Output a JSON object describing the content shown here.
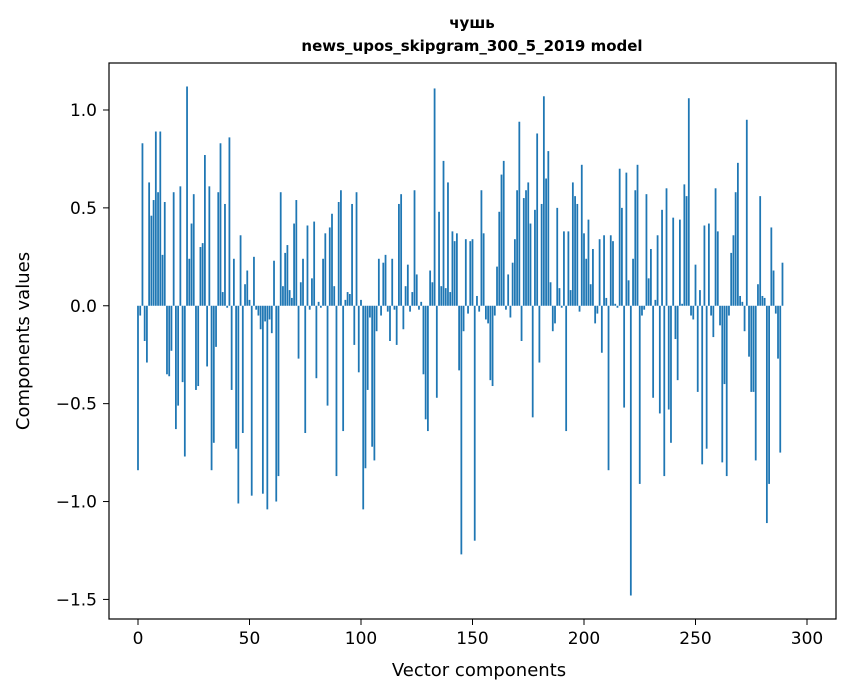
{
  "chart_data": {
    "type": "bar",
    "title": "чушь",
    "subtitle": "news_upos_skipgram_300_5_2019 model",
    "xlabel": "Vector components",
    "ylabel": "Components values",
    "xlim": [
      -13,
      313
    ],
    "ylim": [
      -1.6,
      1.24
    ],
    "xticks": [
      0,
      50,
      100,
      150,
      200,
      250,
      300
    ],
    "yticks": [
      1.0,
      0.5,
      0.0,
      -0.5,
      -1.0,
      -1.5
    ],
    "ytick_labels": [
      "1.0",
      "0.5",
      "0.0",
      "−0.5",
      "−1.0",
      "−1.5"
    ],
    "bar_color": "#1f77b4",
    "values": [
      -0.84,
      -0.05,
      0.83,
      -0.18,
      -0.29,
      0.63,
      0.46,
      0.54,
      0.89,
      0.58,
      0.89,
      0.26,
      0.53,
      -0.35,
      -0.36,
      -0.23,
      0.58,
      -0.63,
      -0.51,
      0.61,
      -0.39,
      -0.77,
      1.12,
      0.24,
      0.42,
      0.57,
      -0.43,
      -0.41,
      0.3,
      0.32,
      0.77,
      -0.31,
      0.61,
      -0.84,
      -0.7,
      -0.21,
      0.58,
      0.83,
      0.07,
      0.52,
      -0.01,
      0.86,
      -0.43,
      0.24,
      -0.73,
      -1.01,
      0.36,
      -0.65,
      0.11,
      0.18,
      0.03,
      -0.97,
      0.25,
      -0.02,
      -0.05,
      -0.12,
      -0.96,
      -0.08,
      -1.04,
      -0.07,
      -0.14,
      0.23,
      -1.0,
      -0.87,
      0.58,
      0.1,
      0.27,
      0.31,
      0.08,
      0.04,
      0.42,
      0.54,
      -0.27,
      0.12,
      0.24,
      -0.65,
      0.41,
      -0.02,
      0.14,
      0.43,
      -0.37,
      0.02,
      -0.01,
      0.24,
      0.37,
      -0.51,
      0.4,
      0.47,
      0.1,
      -0.87,
      0.53,
      0.59,
      -0.64,
      0.03,
      0.07,
      0.06,
      0.52,
      -0.2,
      0.58,
      -0.34,
      0.03,
      -1.04,
      -0.83,
      -0.43,
      -0.06,
      -0.72,
      -0.79,
      -0.13,
      0.24,
      -0.05,
      0.22,
      0.26,
      -0.03,
      -0.18,
      0.24,
      -0.02,
      -0.2,
      0.52,
      0.57,
      -0.12,
      0.1,
      0.21,
      -0.03,
      0.07,
      0.59,
      0.16,
      -0.02,
      0.02,
      -0.35,
      -0.58,
      -0.64,
      0.18,
      0.12,
      1.11,
      -0.47,
      0.48,
      0.1,
      0.74,
      0.09,
      0.63,
      0.07,
      0.38,
      0.33,
      0.37,
      -0.33,
      -1.27,
      -0.13,
      0.34,
      -0.04,
      0.33,
      0.34,
      -1.2,
      0.05,
      -0.03,
      0.59,
      0.37,
      -0.07,
      -0.09,
      -0.38,
      -0.41,
      -0.05,
      0.2,
      0.48,
      0.67,
      0.74,
      -0.02,
      0.16,
      -0.06,
      0.22,
      0.34,
      0.59,
      0.94,
      -0.18,
      0.55,
      0.59,
      0.63,
      0.42,
      -0.57,
      0.49,
      0.88,
      -0.29,
      0.52,
      1.07,
      0.65,
      0.79,
      0.12,
      -0.13,
      -0.09,
      0.5,
      0.09,
      -0.01,
      0.38,
      -0.64,
      0.38,
      0.08,
      0.63,
      0.56,
      0.52,
      -0.03,
      0.72,
      0.37,
      0.24,
      0.44,
      0.11,
      0.29,
      -0.09,
      -0.04,
      0.34,
      -0.24,
      0.36,
      0.04,
      -0.84,
      0.36,
      0.33,
      0.01,
      -0.01,
      0.7,
      0.5,
      -0.52,
      0.68,
      0.13,
      -1.48,
      0.24,
      0.59,
      0.72,
      -0.91,
      -0.05,
      -0.02,
      0.57,
      0.14,
      0.29,
      -0.47,
      0.03,
      0.36,
      -0.55,
      0.49,
      -0.87,
      0.6,
      -0.53,
      -0.7,
      0.45,
      -0.17,
      -0.38,
      0.44,
      0.01,
      0.62,
      0.56,
      1.06,
      -0.05,
      -0.07,
      0.21,
      -0.44,
      0.08,
      -0.81,
      0.41,
      -0.73,
      0.42,
      -0.05,
      -0.16,
      0.6,
      0.38,
      -0.1,
      -0.8,
      -0.4,
      -0.87,
      -0.05,
      0.27,
      0.36,
      0.58,
      0.73,
      0.05,
      0.02,
      -0.13,
      0.95,
      -0.26,
      -0.44,
      -0.44,
      -0.79,
      0.11,
      0.56,
      0.05,
      0.04,
      -1.11,
      -0.91,
      0.4,
      0.18,
      -0.04,
      -0.27,
      -0.75,
      0.22
    ]
  }
}
